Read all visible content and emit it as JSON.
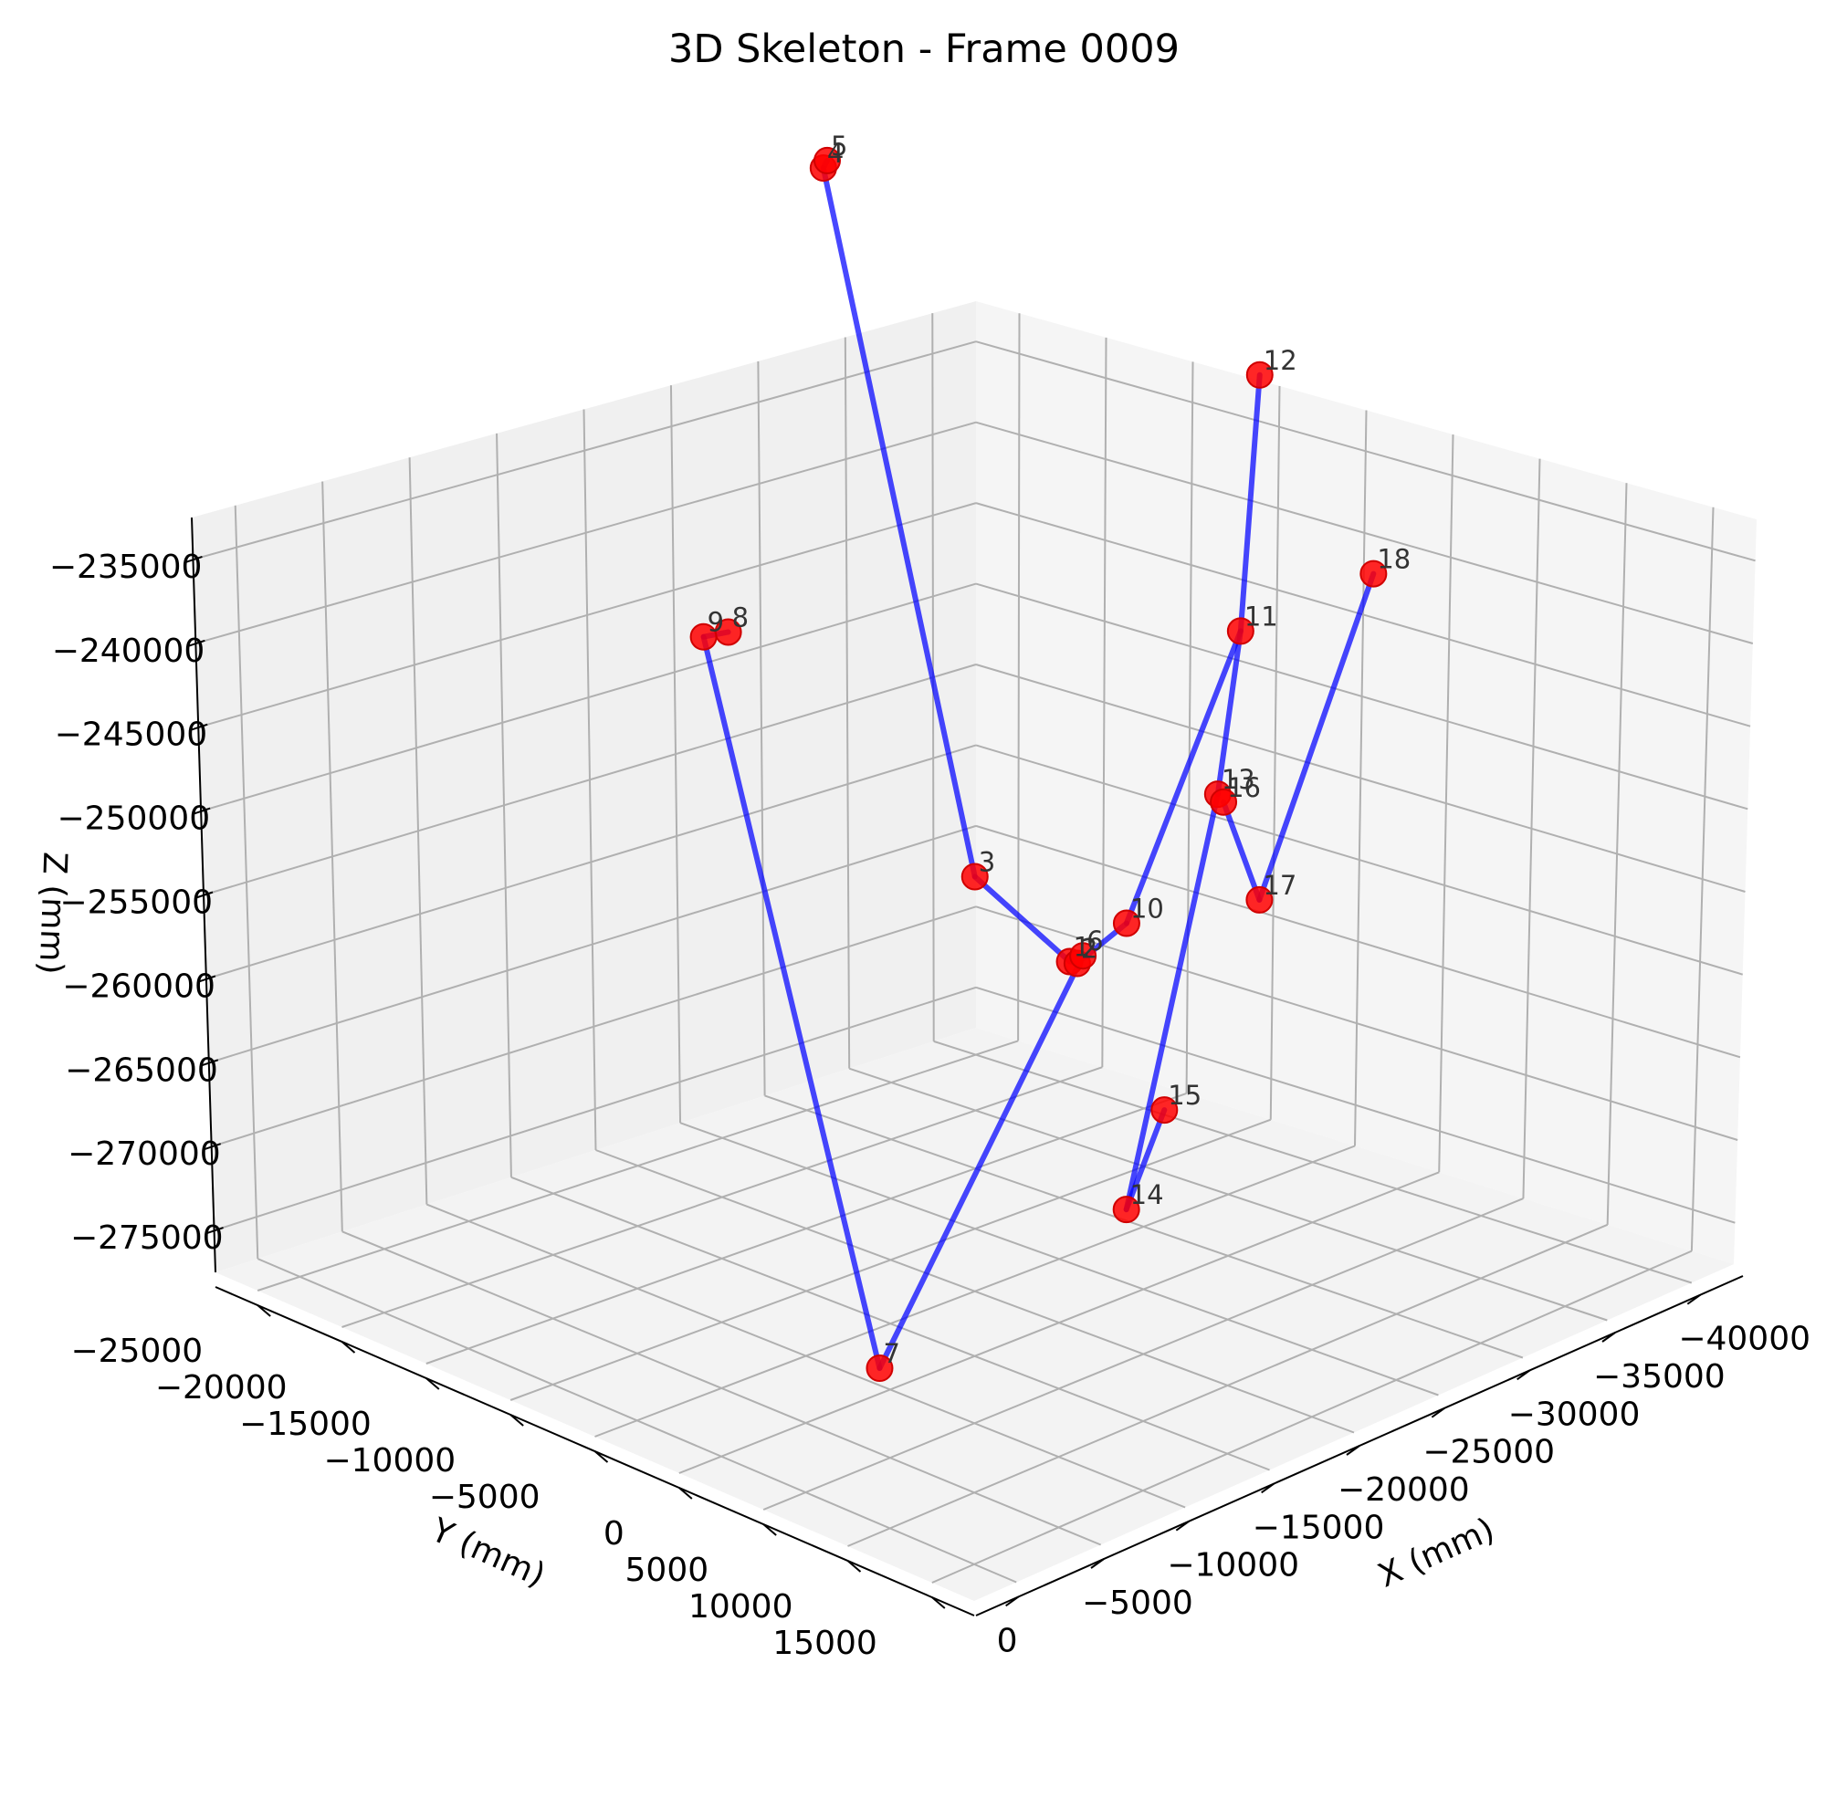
{
  "chart_data": {
    "type": "scatter",
    "title": "3D Skeleton - Frame 0009",
    "xlabel": "X (mm)",
    "ylabel": "Y (mm)",
    "zlabel": "Z (mm)",
    "x_ticks": [
      "−40000",
      "−35000",
      "−30000",
      "−25000",
      "−20000",
      "−15000",
      "−10000",
      "−5000",
      "0"
    ],
    "y_ticks": [
      "−25000",
      "−20000",
      "−15000",
      "−10000",
      "−5000",
      "0",
      "5000",
      "10000",
      "15000"
    ],
    "z_ticks": [
      "−235000",
      "−240000",
      "−245000",
      "−250000",
      "−255000",
      "−260000",
      "−265000",
      "−270000",
      "−275000"
    ],
    "xlim": [
      -40000,
      0
    ],
    "ylim": [
      -25000,
      15000
    ],
    "zlim": [
      -275000,
      -235000
    ],
    "grid": true,
    "point_color": "#ff0000",
    "bone_color": "#0000ff",
    "joints": [
      {
        "label": "1",
        "x": -20000,
        "y": 0,
        "z": -253800
      },
      {
        "label": "2",
        "x": -20200,
        "y": 200,
        "z": -253900
      },
      {
        "label": "3",
        "x": -20000,
        "y": -5000,
        "z": -251500
      },
      {
        "label": "4",
        "x": -23000,
        "y": -16000,
        "z": -220000
      },
      {
        "label": "5",
        "x": -23500,
        "y": -16300,
        "z": -220000
      },
      {
        "label": "6",
        "x": -20400,
        "y": 300,
        "z": -253500
      },
      {
        "label": "7",
        "x": -10000,
        "y": 0,
        "z": -273000
      },
      {
        "label": "8",
        "x": -16000,
        "y": -14000,
        "z": -241000
      },
      {
        "label": "9",
        "x": -15500,
        "y": -14800,
        "z": -241500
      },
      {
        "label": "10",
        "x": -22000,
        "y": 1000,
        "z": -252000
      },
      {
        "label": "11",
        "x": -29000,
        "y": 0,
        "z": -239000
      },
      {
        "label": "12",
        "x": -32000,
        "y": -2000,
        "z": -227000
      },
      {
        "label": "13",
        "x": -27000,
        "y": 800,
        "z": -247000
      },
      {
        "label": "14",
        "x": -16000,
        "y": 7000,
        "z": -263000
      },
      {
        "label": "15",
        "x": -18500,
        "y": 6500,
        "z": -258500
      },
      {
        "label": "16",
        "x": -27200,
        "y": 900,
        "z": -247500
      },
      {
        "label": "17",
        "x": -25000,
        "y": 5000,
        "z": -250000
      },
      {
        "label": "18",
        "x": -33000,
        "y": 3000,
        "z": -236000
      }
    ],
    "bones": [
      [
        "5",
        "4"
      ],
      [
        "4",
        "3"
      ],
      [
        "3",
        "1"
      ],
      [
        "1",
        "2"
      ],
      [
        "1",
        "6"
      ],
      [
        "6",
        "7"
      ],
      [
        "8",
        "9"
      ],
      [
        "9",
        "7"
      ],
      [
        "2",
        "10"
      ],
      [
        "10",
        "11"
      ],
      [
        "11",
        "12"
      ],
      [
        "11",
        "13"
      ],
      [
        "13",
        "14"
      ],
      [
        "14",
        "15"
      ],
      [
        "16",
        "17"
      ],
      [
        "17",
        "18"
      ]
    ]
  }
}
